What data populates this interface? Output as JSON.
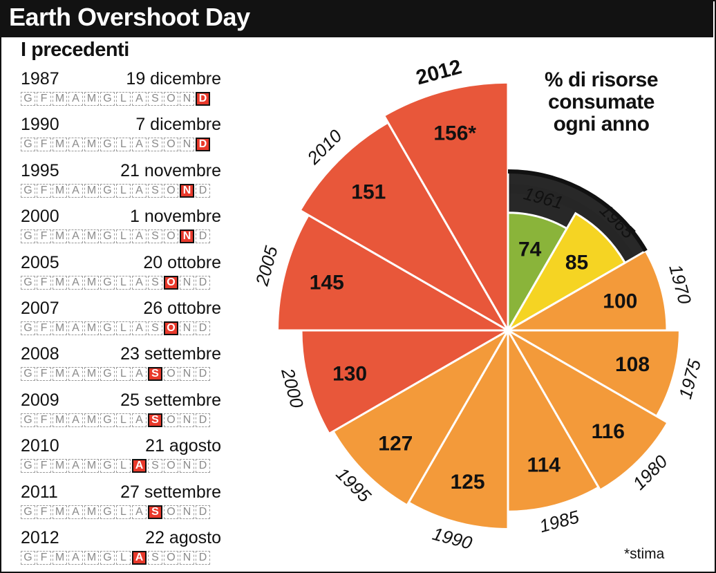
{
  "title": "Earth Overshoot Day",
  "subtitle": "I precedenti",
  "legend_title_lines": [
    "% di risorse",
    "consumate",
    "ogni anno"
  ],
  "footnote": "*stima",
  "month_letters": [
    "G",
    "F",
    "M",
    "A",
    "M",
    "G",
    "L",
    "A",
    "S",
    "O",
    "N",
    "D"
  ],
  "rows": [
    {
      "year": "1987",
      "date": "19 dicembre",
      "month_index": 11
    },
    {
      "year": "1990",
      "date": "7 dicembre",
      "month_index": 11
    },
    {
      "year": "1995",
      "date": "21 novembre",
      "month_index": 10
    },
    {
      "year": "2000",
      "date": "1 novembre",
      "month_index": 10
    },
    {
      "year": "2005",
      "date": "20 ottobre",
      "month_index": 9
    },
    {
      "year": "2007",
      "date": "26 ottobre",
      "month_index": 9
    },
    {
      "year": "2008",
      "date": "23 settembre",
      "month_index": 8
    },
    {
      "year": "2009",
      "date": "25 settembre",
      "month_index": 8
    },
    {
      "year": "2010",
      "date": "21 agosto",
      "month_index": 7
    },
    {
      "year": "2011",
      "date": "27 settembre",
      "month_index": 8
    },
    {
      "year": "2012",
      "date": "22 agosto",
      "month_index": 7
    }
  ],
  "chart_data": {
    "type": "polar-area",
    "categories": [
      "1961",
      "1965",
      "1970",
      "1975",
      "1980",
      "1985",
      "1990",
      "1995",
      "2000",
      "2005",
      "2010",
      "2012"
    ],
    "values": [
      74,
      85,
      100,
      108,
      116,
      114,
      125,
      127,
      130,
      145,
      151,
      156
    ],
    "value_labels": [
      "74",
      "85",
      "100",
      "108",
      "116",
      "114",
      "125",
      "127",
      "130",
      "145",
      "151",
      "156*"
    ],
    "colors": [
      "#8ab43a",
      "#f5d423",
      "#f39a3a",
      "#f39a3a",
      "#f39a3a",
      "#f39a3a",
      "#f39a3a",
      "#f39a3a",
      "#e8573a",
      "#e8573a",
      "#e8573a",
      "#e8573a"
    ],
    "reference_value": 100,
    "reference_color": "#111111"
  }
}
